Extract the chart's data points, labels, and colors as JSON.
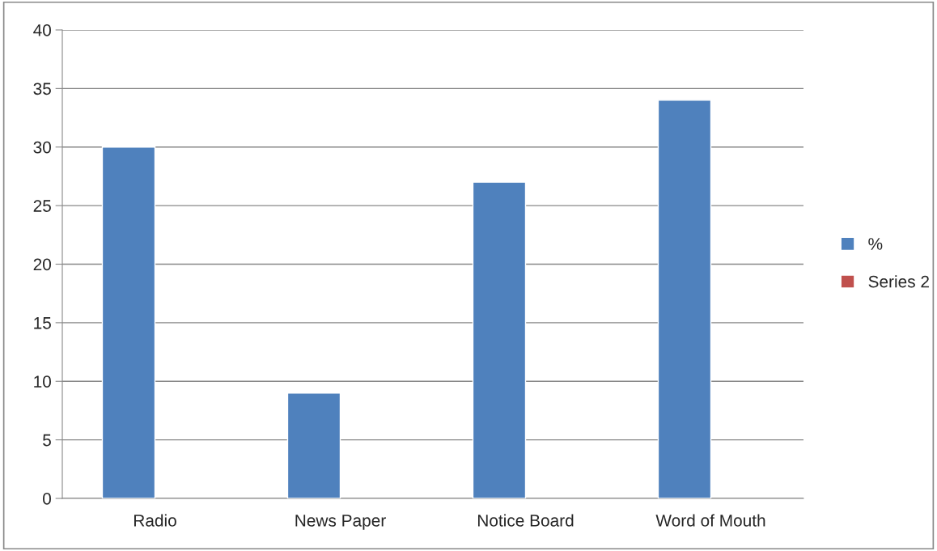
{
  "chart_data": {
    "type": "bar",
    "categories": [
      "Radio",
      "News Paper",
      "Notice Board",
      "Word of Mouth"
    ],
    "series": [
      {
        "name": "%",
        "color": "#4f81bd",
        "values": [
          30,
          9,
          27,
          34
        ]
      },
      {
        "name": "Series 2",
        "color": "#c0504d",
        "values": [
          null,
          null,
          null,
          null
        ]
      }
    ],
    "ylim": [
      0,
      40
    ],
    "yticks": [
      0,
      5,
      10,
      15,
      20,
      25,
      30,
      35,
      40
    ],
    "grid": "y",
    "legend": "right"
  }
}
